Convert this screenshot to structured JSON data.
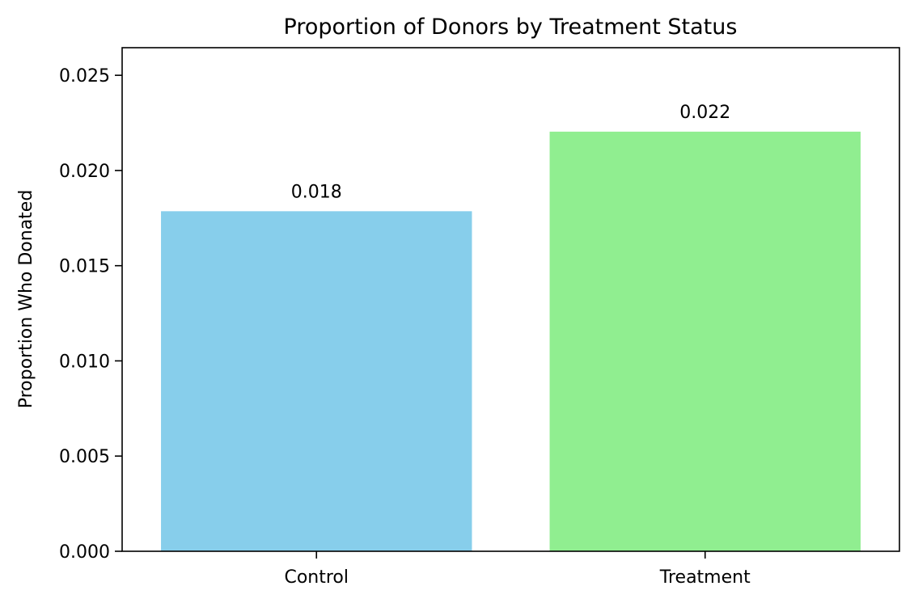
{
  "chart_data": {
    "type": "bar",
    "title": "Proportion of Donors by Treatment Status",
    "xlabel": "",
    "ylabel": "Proportion Who Donated",
    "categories": [
      "Control",
      "Treatment"
    ],
    "values": [
      0.01786,
      0.02204
    ],
    "data_labels": [
      "0.018",
      "0.022"
    ],
    "bar_colors": [
      "#87ceeb",
      "#90ee90"
    ],
    "ylim": [
      0,
      0.02645
    ],
    "yticks": [
      0.0,
      0.005,
      0.01,
      0.015,
      0.02,
      0.025
    ],
    "ytick_labels": [
      "0.000",
      "0.005",
      "0.010",
      "0.015",
      "0.020",
      "0.025"
    ],
    "grid": false,
    "legend": "none"
  }
}
